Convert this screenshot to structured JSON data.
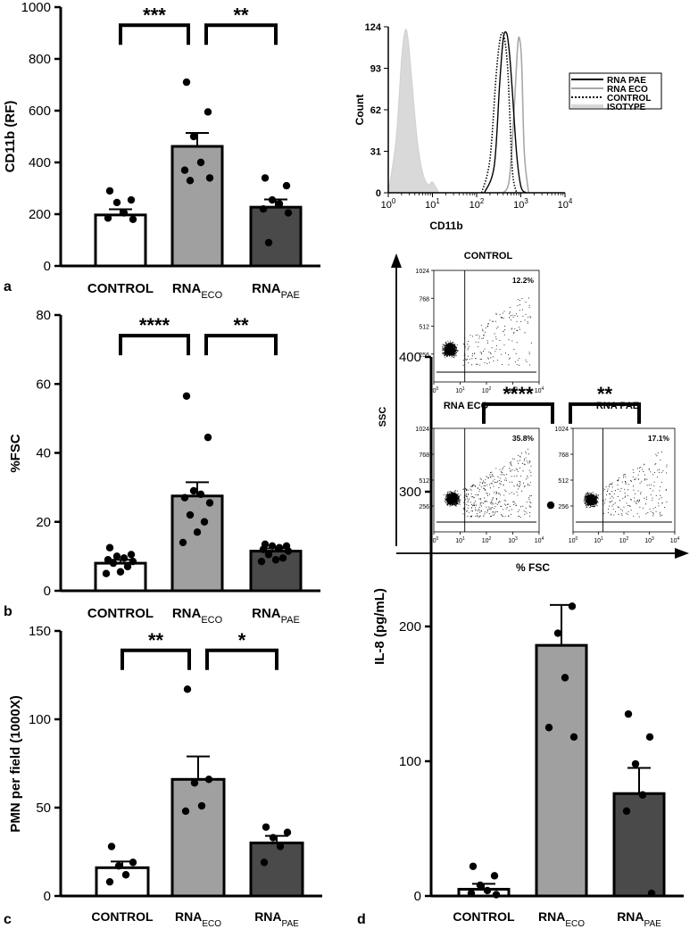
{
  "figure": {
    "panel_labels": [
      "a",
      "b",
      "c",
      "d"
    ]
  },
  "chart_data": [
    {
      "id": "a",
      "type": "bar",
      "ylabel": "CD11b (RF)",
      "ylim": [
        0,
        1000
      ],
      "yticks": [
        "0",
        "200",
        "400",
        "600",
        "800",
        "1000"
      ],
      "categories": [
        {
          "main": "CONTROL",
          "sub": ""
        },
        {
          "main": "RNA",
          "sub": "ECO"
        },
        {
          "main": "RNA",
          "sub": "PAE"
        }
      ],
      "values": [
        197,
        462,
        227
      ],
      "errors": [
        22,
        52,
        30
      ],
      "colors": [
        "#ffffff",
        "#a0a0a0",
        "#4a4a4a"
      ],
      "points": [
        [
          290,
          255,
          245,
          205,
          185,
          180
        ],
        [
          710,
          595,
          500,
          400,
          370,
          340,
          330
        ],
        [
          340,
          310,
          255,
          240,
          220,
          205,
          90
        ]
      ],
      "comparisons": [
        {
          "stars": "***",
          "from": 0,
          "to": 1,
          "height": 930
        },
        {
          "stars": "**",
          "from": 1,
          "to": 2,
          "height": 930
        }
      ]
    },
    {
      "id": "b",
      "type": "bar",
      "ylabel": "%FSC",
      "ylim": [
        0,
        80
      ],
      "yticks": [
        "0",
        "20",
        "40",
        "60",
        "80"
      ],
      "categories": [
        {
          "main": "CONTROL",
          "sub": ""
        },
        {
          "main": "RNA",
          "sub": "ECO"
        },
        {
          "main": "RNA",
          "sub": "PAE"
        }
      ],
      "values": [
        8,
        27.5,
        11.5
      ],
      "errors": [
        1,
        4,
        0.8
      ],
      "colors": [
        "#ffffff",
        "#a0a0a0",
        "#4a4a4a"
      ],
      "points": [
        [
          12.5,
          10.5,
          10,
          9.5,
          9,
          8.5,
          8,
          7,
          5.5,
          5
        ],
        [
          56.5,
          44.5,
          29,
          28,
          27,
          25.5,
          22,
          20,
          17,
          14
        ],
        [
          13.5,
          13,
          13,
          12.5,
          12,
          11.5,
          10.5,
          9.5,
          9,
          8.5
        ]
      ],
      "comparisons": [
        {
          "stars": "****",
          "from": 0,
          "to": 1,
          "height": 74
        },
        {
          "stars": "**",
          "from": 1,
          "to": 2,
          "height": 74
        }
      ]
    },
    {
      "id": "c",
      "type": "bar",
      "ylabel": "PMN per field (1000X)",
      "ylim": [
        0,
        150
      ],
      "yticks": [
        "0",
        "50",
        "100",
        "150"
      ],
      "categories": [
        {
          "main": "CONTROL",
          "sub": ""
        },
        {
          "main": "RNA",
          "sub": "ECO"
        },
        {
          "main": "RNA",
          "sub": "PAE"
        }
      ],
      "values": [
        16,
        66,
        30
      ],
      "errors": [
        3.5,
        13,
        4
      ],
      "colors": [
        "#ffffff",
        "#a0a0a0",
        "#4a4a4a"
      ],
      "points": [
        [
          28,
          19,
          17,
          12,
          8
        ],
        [
          117,
          66,
          64,
          51,
          48
        ],
        [
          39,
          36,
          33,
          28,
          19
        ]
      ],
      "comparisons": [
        {
          "stars": "**",
          "from": 0,
          "to": 1,
          "height": 139
        },
        {
          "stars": "*",
          "from": 1,
          "to": 2,
          "height": 139
        }
      ]
    },
    {
      "id": "d",
      "type": "bar",
      "ylabel": "IL-8 (pg/mL)",
      "ylim": [
        0,
        400
      ],
      "yticks": [
        "0",
        "100",
        "200",
        "300",
        "400"
      ],
      "categories": [
        {
          "main": "CONTROL",
          "sub": ""
        },
        {
          "main": "RNA",
          "sub": "ECO"
        },
        {
          "main": "RNA",
          "sub": "PAE"
        }
      ],
      "values": [
        5,
        186,
        76
      ],
      "errors": [
        4,
        30,
        19
      ],
      "colors": [
        "#ffffff",
        "#a0a0a0",
        "#4a4a4a"
      ],
      "points": [
        [
          22,
          15,
          8,
          4,
          2,
          1
        ],
        [
          290,
          215,
          195,
          162,
          125,
          118
        ],
        [
          135,
          118,
          98,
          75,
          63,
          2
        ]
      ],
      "comparisons": [
        {
          "stars": "****",
          "from": 0,
          "to": 1,
          "height": 365
        },
        {
          "stars": "**",
          "from": 1,
          "to": 2,
          "height": 365
        }
      ]
    },
    {
      "id": "a-histogram",
      "type": "line",
      "title": "",
      "xlabel": "CD11b",
      "ylabel": "Count",
      "xscale": "log",
      "xlim": [
        1,
        10000
      ],
      "xticks": [
        "10",
        "10",
        "10",
        "10",
        "10"
      ],
      "xtick_exponents": [
        "0",
        "1",
        "2",
        "3",
        "4"
      ],
      "ylim": [
        0,
        124
      ],
      "yticks": [
        "0",
        "31",
        "62",
        "93",
        "124"
      ],
      "legend": [
        "RNA PAE",
        "RNA ECO",
        "CONTROL",
        "ISOTYPE"
      ],
      "series": [
        {
          "name": "RNA PAE",
          "style": "solid-black",
          "x": [
            150,
            250,
            330,
            400,
            480,
            550,
            630,
            800,
            1000,
            1300
          ],
          "y": [
            0,
            20,
            80,
            115,
            119,
            105,
            80,
            30,
            5,
            0
          ]
        },
        {
          "name": "RNA ECO",
          "style": "solid-lightgray",
          "x": [
            400,
            550,
            700,
            850,
            950,
            1050,
            1200,
            1500
          ],
          "y": [
            0,
            10,
            60,
            110,
            114,
            95,
            30,
            0
          ]
        },
        {
          "name": "CONTROL",
          "style": "dotted-black",
          "x": [
            130,
            200,
            280,
            350,
            420,
            500,
            560,
            650,
            800
          ],
          "y": [
            0,
            25,
            90,
            117,
            116,
            95,
            60,
            15,
            0
          ]
        },
        {
          "name": "ISOTYPE",
          "style": "filled-gray",
          "x": [
            1,
            1.5,
            2,
            2.4,
            2.8,
            3.5,
            4.5,
            6,
            8,
            10,
            14
          ],
          "y": [
            0,
            40,
            100,
            121,
            115,
            80,
            40,
            15,
            6,
            8,
            0
          ]
        }
      ]
    },
    {
      "id": "b-scatter",
      "type": "scatter",
      "xlabel": "% FSC",
      "ylabel": "SSC",
      "xscale": "log",
      "yticks": [
        "1024",
        "768",
        "512",
        "256"
      ],
      "xticks": [
        "10",
        "10",
        "10",
        "10",
        "10"
      ],
      "xtick_exponents": [
        "0",
        "1",
        "2",
        "3",
        "4"
      ],
      "subplots": [
        {
          "title": "CONTROL",
          "percent": "12.2%",
          "gate_x": 15,
          "cluster_x": 4,
          "cluster_y": 300,
          "n_dense": 1100,
          "n_sparse": 170
        },
        {
          "title": "RNA ECO",
          "percent": "35.8%",
          "gate_x": 15,
          "cluster_x": 5,
          "cluster_y": 330,
          "n_dense": 1200,
          "n_sparse": 360
        },
        {
          "title": "RNA PAE",
          "percent": "17.1%",
          "gate_x": 15,
          "cluster_x": 5,
          "cluster_y": 320,
          "n_dense": 950,
          "n_sparse": 200
        }
      ]
    }
  ]
}
